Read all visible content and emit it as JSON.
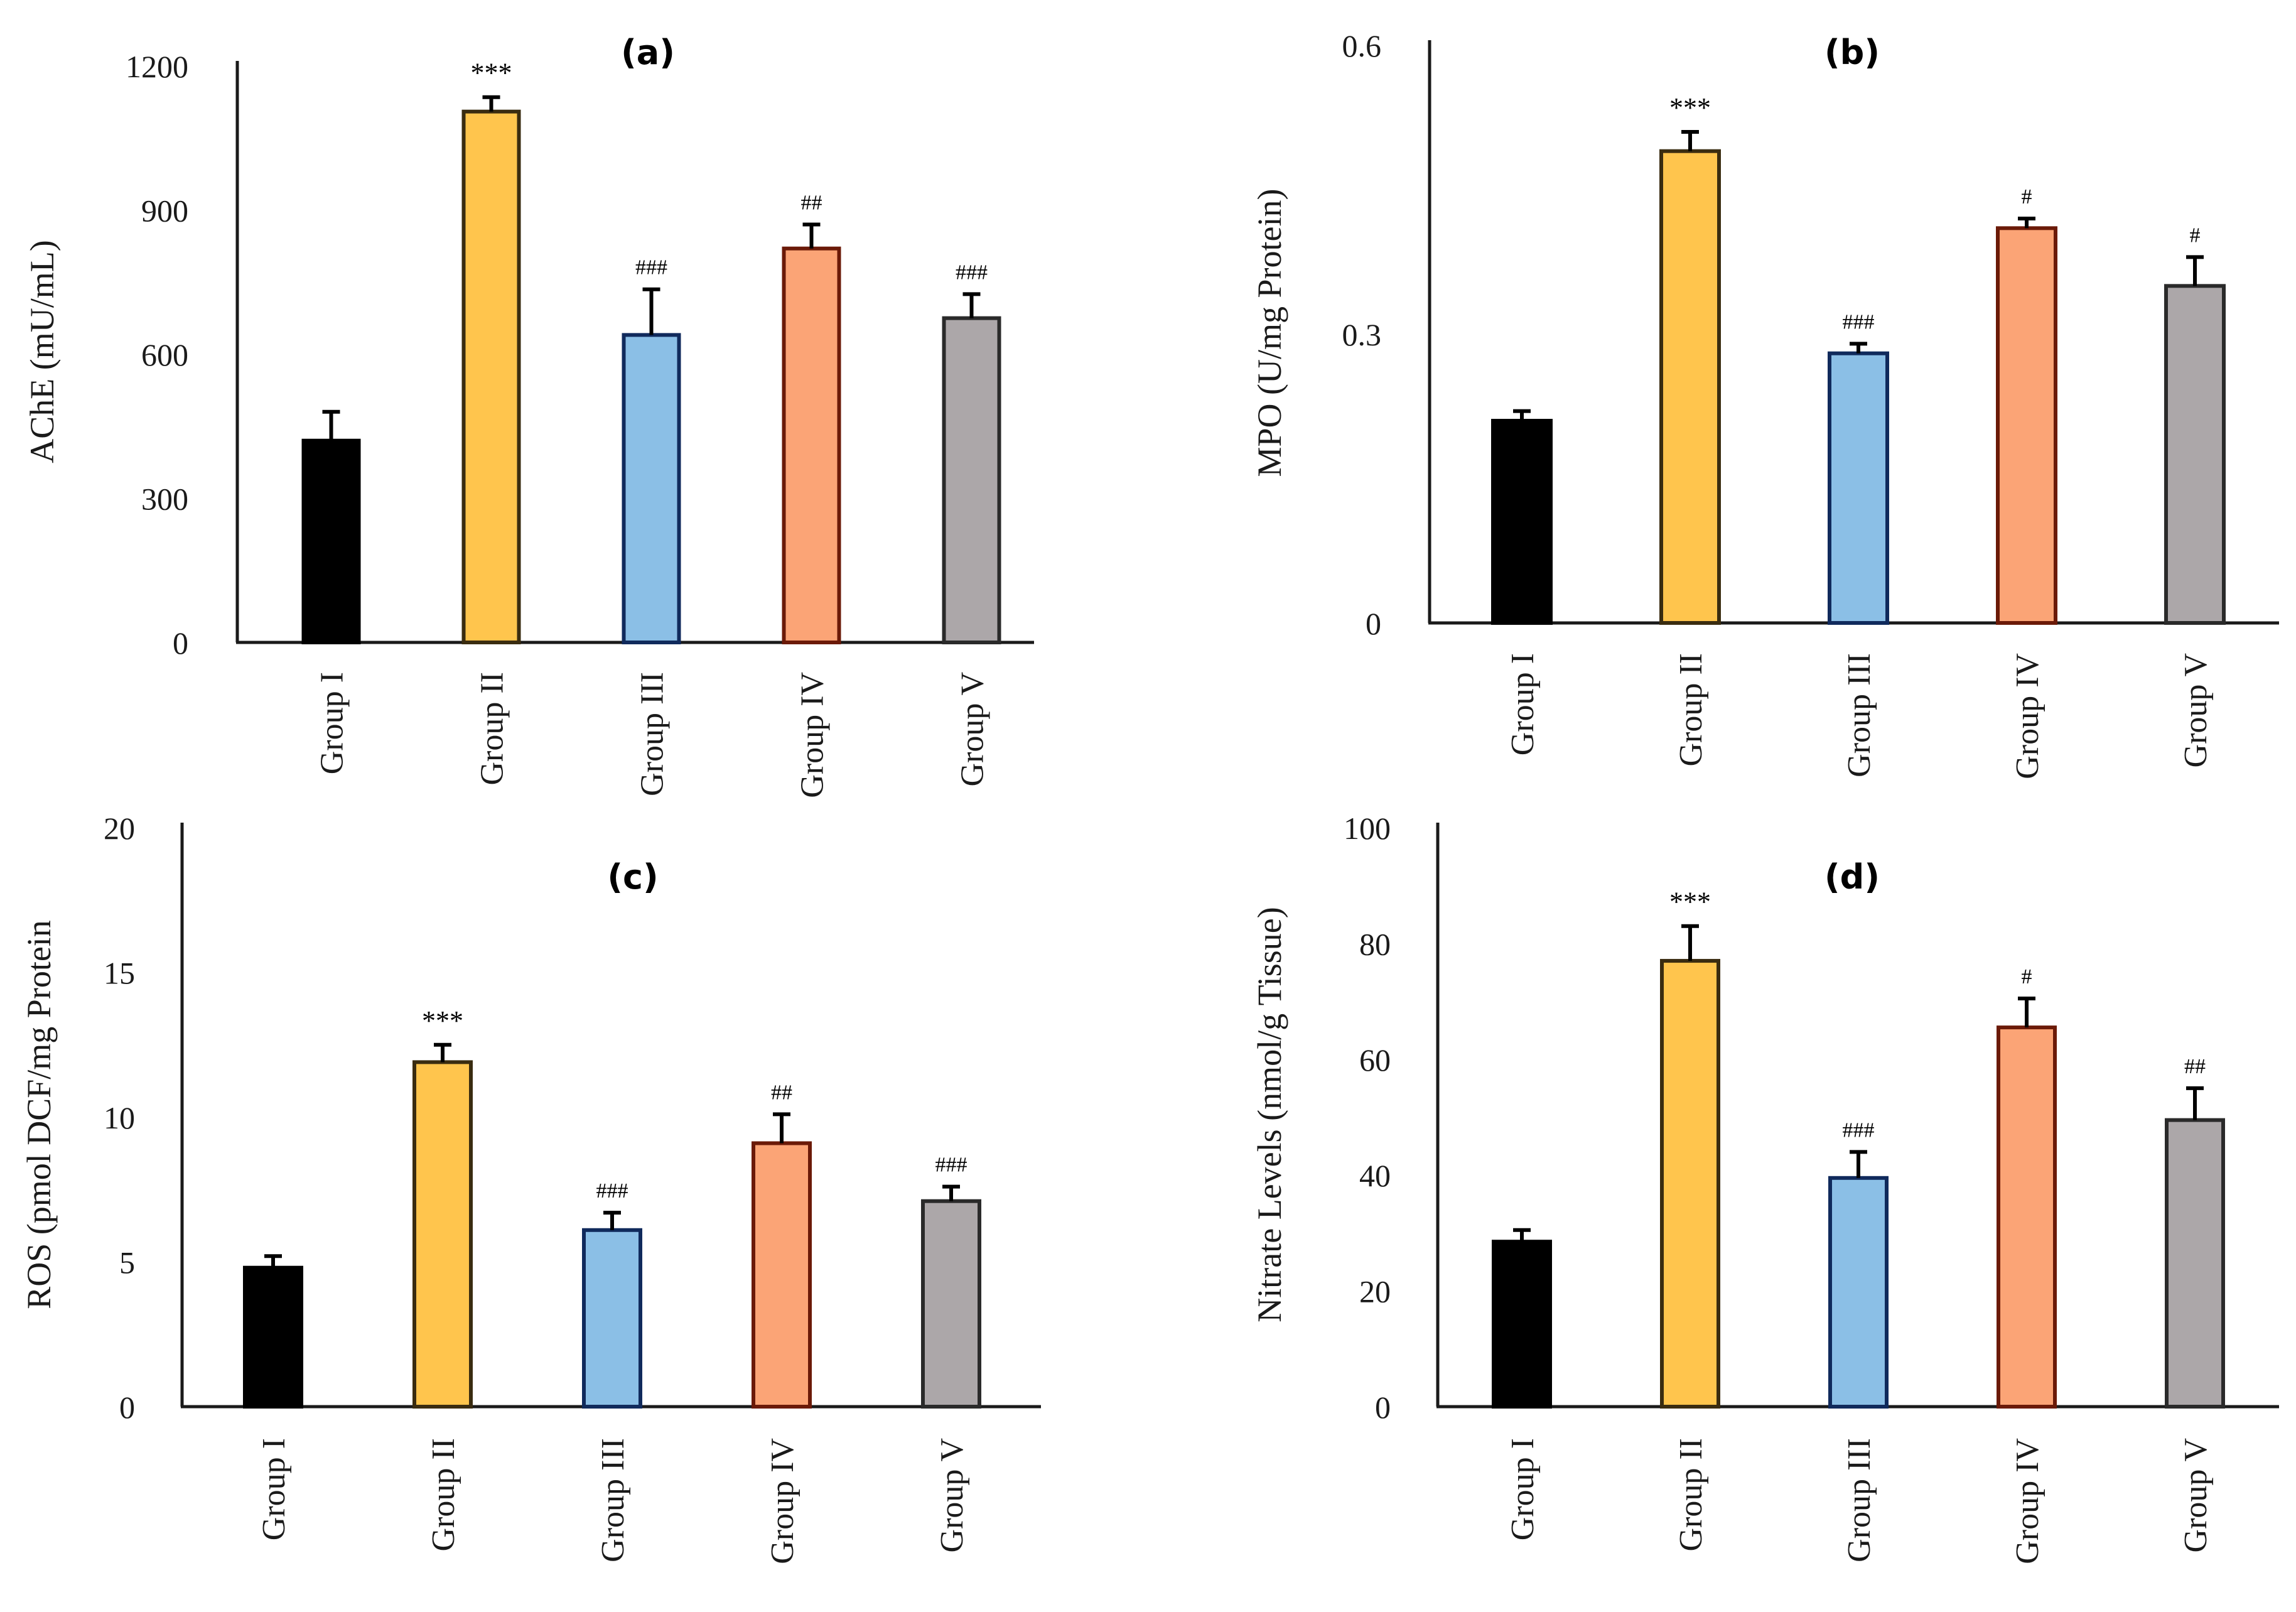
{
  "chart_data": [
    {
      "type": "bar",
      "panel": "(a)",
      "title": "",
      "xlabel": "",
      "ylabel": "AChE (mU/mL)",
      "ylim": [
        0,
        1200
      ],
      "yticks": [
        "0",
        "300",
        "600",
        "900",
        "1200"
      ],
      "categories": [
        "Group I",
        "Group II",
        "Group III",
        "Group IV",
        "Group V"
      ],
      "values": [
        420,
        1105,
        640,
        820,
        675
      ],
      "errors": [
        60,
        30,
        95,
        50,
        50
      ],
      "significance": [
        "",
        "***",
        "###",
        "##",
        "###"
      ],
      "grid": false,
      "legend": "none"
    },
    {
      "type": "bar",
      "panel": "(b)",
      "title": "",
      "xlabel": "",
      "ylabel": "MPO (U/mg Protein)",
      "ylim": [
        0,
        0.6
      ],
      "yticks": [
        "0",
        "0.3",
        "0.6"
      ],
      "categories": [
        "Group I",
        "Group II",
        "Group III",
        "Group IV",
        "Group V"
      ],
      "values": [
        0.21,
        0.49,
        0.28,
        0.41,
        0.35
      ],
      "errors": [
        0.01,
        0.02,
        0.01,
        0.01,
        0.03
      ],
      "significance": [
        "",
        "***",
        "###",
        "#",
        "#"
      ],
      "grid": false,
      "legend": "none"
    },
    {
      "type": "bar",
      "panel": "(c)",
      "title": "",
      "xlabel": "",
      "ylabel": "ROS (pmol DCF/mg Protein",
      "ylim": [
        0,
        20
      ],
      "yticks": [
        "0",
        "5",
        "10",
        "15",
        "20"
      ],
      "categories": [
        "Group I",
        "Group II",
        "Group III",
        "Group IV",
        "Group V"
      ],
      "values": [
        4.8,
        11.9,
        6.1,
        9.1,
        7.1
      ],
      "errors": [
        0.4,
        0.6,
        0.6,
        1.0,
        0.5
      ],
      "significance": [
        "",
        "***",
        "###",
        "##",
        "###"
      ],
      "grid": false,
      "legend": "none"
    },
    {
      "type": "bar",
      "panel": "(d)",
      "title": "",
      "xlabel": "",
      "ylabel": "Nitrate Levels (nmol/g Tissue)",
      "ylim": [
        0,
        100
      ],
      "yticks": [
        "0",
        "20",
        "40",
        "60",
        "80",
        "100"
      ],
      "categories": [
        "Group I",
        "Group II",
        "Group III",
        "Group IV",
        "Group V"
      ],
      "values": [
        28.5,
        77,
        39.5,
        65.5,
        49.5
      ],
      "errors": [
        2,
        6,
        4.5,
        5,
        5.5
      ],
      "significance": [
        "",
        "***",
        "###",
        "#",
        "##"
      ],
      "grid": false,
      "legend": "none"
    }
  ],
  "colors": {
    "fills": [
      "#000000",
      "#ffc54d",
      "#8bbfe6",
      "#fba476",
      "#aca7a9"
    ],
    "strokes": [
      "#000000",
      "#3a2c10",
      "#102a5c",
      "#6b1a08",
      "#2a2a2a"
    ],
    "axis": "#1a1a1a"
  }
}
